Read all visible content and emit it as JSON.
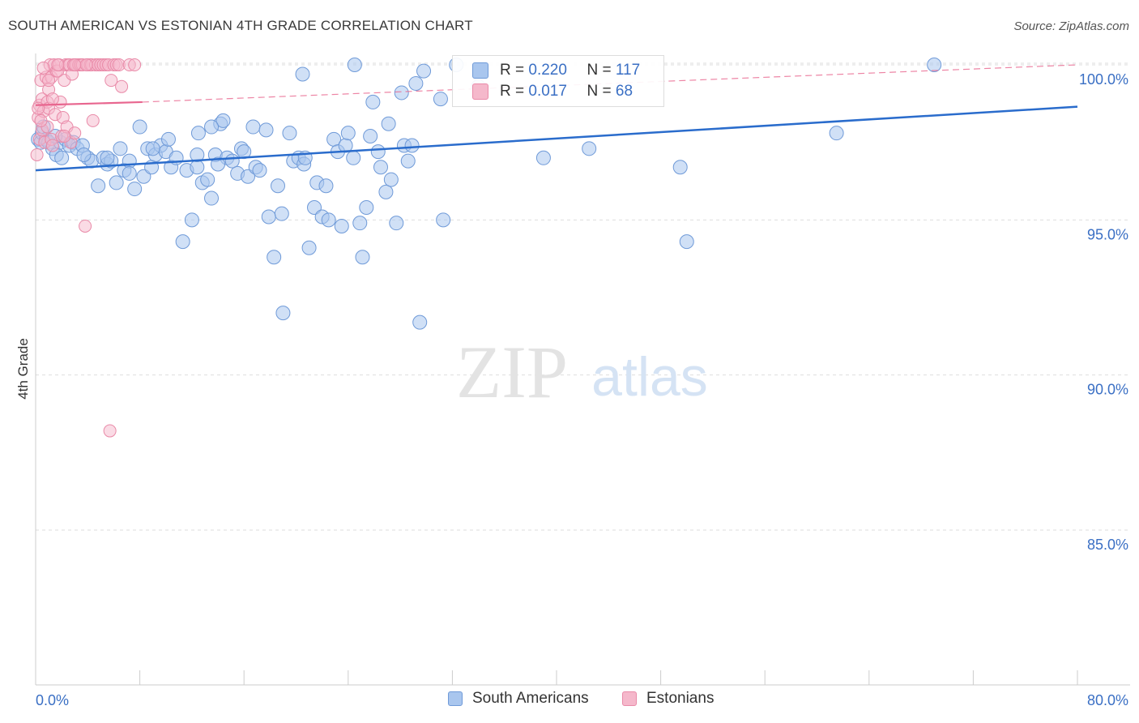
{
  "header": {
    "title": "SOUTH AMERICAN VS ESTONIAN 4TH GRADE CORRELATION CHART",
    "source": "Source: ZipAtlas.com"
  },
  "watermark": {
    "zip": "ZIP",
    "atlas": "atlas"
  },
  "stats": {
    "south": {
      "r_label": "R =",
      "r_value": "0.220",
      "n_label": "N =",
      "n_value": "117"
    },
    "estonian": {
      "r_label": "R =",
      "r_value": "0.017",
      "n_label": "N =",
      "n_value": "68"
    }
  },
  "legend": {
    "south": "South Americans",
    "estonian": "Estonians"
  },
  "colors": {
    "blue_fill": "#a9c6ee",
    "blue_stroke": "#6f9ad8",
    "blue_line": "#2a6ccc",
    "pink_fill": "#f5b8cb",
    "pink_stroke": "#e98aa8",
    "pink_line": "#e8668f",
    "tick_label": "#3a6fc4",
    "grid": "#dddddd"
  },
  "chart_data": {
    "type": "scatter",
    "title": "SOUTH AMERICAN VS ESTONIAN 4TH GRADE CORRELATION CHART",
    "xlabel": "",
    "ylabel": "4th Grade",
    "xlim": [
      0,
      80
    ],
    "ylim": [
      80.5,
      100.8
    ],
    "x_tick_labels": [
      "0.0%",
      "80.0%"
    ],
    "y_ticks": [
      85,
      90,
      95,
      100
    ],
    "y_tick_labels": [
      "85.0%",
      "90.0%",
      "95.0%",
      "100.0%"
    ],
    "grid": true,
    "legend_position": "bottom-center",
    "series": [
      {
        "name": "South Americans",
        "r": 0.22,
        "n": 117,
        "trend": {
          "x": [
            0,
            80
          ],
          "y": [
            96.6,
            98.65
          ]
        },
        "points": [
          [
            0.2,
            97.6
          ],
          [
            0.4,
            97.5
          ],
          [
            0.5,
            97.8
          ],
          [
            0.6,
            98.0
          ],
          [
            0.8,
            97.6
          ],
          [
            1.0,
            97.5
          ],
          [
            1.3,
            97.3
          ],
          [
            1.6,
            97.1
          ],
          [
            1.9,
            97.5
          ],
          [
            2.3,
            97.6
          ],
          [
            2.6,
            97.4
          ],
          [
            2.9,
            97.5
          ],
          [
            3.2,
            97.3
          ],
          [
            3.6,
            97.4
          ],
          [
            4.0,
            97.0
          ],
          [
            4.3,
            96.9
          ],
          [
            4.8,
            96.1
          ],
          [
            5.2,
            97.0
          ],
          [
            5.5,
            96.8
          ],
          [
            5.8,
            96.9
          ],
          [
            6.2,
            96.2
          ],
          [
            6.5,
            97.3
          ],
          [
            6.8,
            96.6
          ],
          [
            7.2,
            96.9
          ],
          [
            7.6,
            96.0
          ],
          [
            8.0,
            98.0
          ],
          [
            8.3,
            96.4
          ],
          [
            8.6,
            97.3
          ],
          [
            8.9,
            96.7
          ],
          [
            9.2,
            97.1
          ],
          [
            9.6,
            97.4
          ],
          [
            10.0,
            97.2
          ],
          [
            10.4,
            96.7
          ],
          [
            10.8,
            97.0
          ],
          [
            11.3,
            94.3
          ],
          [
            11.6,
            96.6
          ],
          [
            12.0,
            95.0
          ],
          [
            12.4,
            96.7
          ],
          [
            12.4,
            97.1
          ],
          [
            12.5,
            97.8
          ],
          [
            12.8,
            96.2
          ],
          [
            13.2,
            96.3
          ],
          [
            13.5,
            95.7
          ],
          [
            13.8,
            97.1
          ],
          [
            14.2,
            98.1
          ],
          [
            14.4,
            98.2
          ],
          [
            14.7,
            97.0
          ],
          [
            15.1,
            96.9
          ],
          [
            15.5,
            96.5
          ],
          [
            15.8,
            97.3
          ],
          [
            16.0,
            97.2
          ],
          [
            16.3,
            96.4
          ],
          [
            16.7,
            98.0
          ],
          [
            16.9,
            96.7
          ],
          [
            17.2,
            96.6
          ],
          [
            17.7,
            97.9
          ],
          [
            17.9,
            95.1
          ],
          [
            18.3,
            93.8
          ],
          [
            18.6,
            96.1
          ],
          [
            18.9,
            95.2
          ],
          [
            19.0,
            92.0
          ],
          [
            19.5,
            97.8
          ],
          [
            19.8,
            96.9
          ],
          [
            20.2,
            97.0
          ],
          [
            20.6,
            96.8
          ],
          [
            20.7,
            97.0
          ],
          [
            21.0,
            94.1
          ],
          [
            21.4,
            95.4
          ],
          [
            21.6,
            96.2
          ],
          [
            22.0,
            95.1
          ],
          [
            22.3,
            96.1
          ],
          [
            22.5,
            95.0
          ],
          [
            22.9,
            97.6
          ],
          [
            23.2,
            97.2
          ],
          [
            23.5,
            94.8
          ],
          [
            23.8,
            97.4
          ],
          [
            24.0,
            97.8
          ],
          [
            24.4,
            97.0
          ],
          [
            24.9,
            94.9
          ],
          [
            25.1,
            93.8
          ],
          [
            25.4,
            95.4
          ],
          [
            25.7,
            97.7
          ],
          [
            25.9,
            98.8
          ],
          [
            26.3,
            97.2
          ],
          [
            26.5,
            96.7
          ],
          [
            26.9,
            95.9
          ],
          [
            27.1,
            98.1
          ],
          [
            27.3,
            96.3
          ],
          [
            27.7,
            94.9
          ],
          [
            28.1,
            99.1
          ],
          [
            28.3,
            97.4
          ],
          [
            28.6,
            96.9
          ],
          [
            28.9,
            97.4
          ],
          [
            29.2,
            99.4
          ],
          [
            29.5,
            91.7
          ],
          [
            29.8,
            99.8
          ],
          [
            31.1,
            98.9
          ],
          [
            31.3,
            95.0
          ],
          [
            32.3,
            100.0
          ],
          [
            34.0,
            99.3
          ],
          [
            39.0,
            97.0
          ],
          [
            42.5,
            97.3
          ],
          [
            49.5,
            96.7
          ],
          [
            50.0,
            94.3
          ],
          [
            61.5,
            97.8
          ],
          [
            69.0,
            100.0
          ],
          [
            24.5,
            100.0
          ],
          [
            20.5,
            99.7
          ],
          [
            9.0,
            97.3
          ],
          [
            13.5,
            98.0
          ],
          [
            5.5,
            97.0
          ],
          [
            3.7,
            97.1
          ],
          [
            7.2,
            96.5
          ],
          [
            1.5,
            97.7
          ],
          [
            2.0,
            97.0
          ],
          [
            10.2,
            97.6
          ],
          [
            14.0,
            96.8
          ]
        ]
      },
      {
        "name": "Estonians",
        "r": 0.017,
        "n": 68,
        "trend_solid": {
          "x": [
            0,
            8.2
          ],
          "y": [
            98.7,
            98.8
          ]
        },
        "trend_dashed": {
          "x": [
            8.2,
            80
          ],
          "y": [
            98.8,
            100.0
          ]
        },
        "points": [
          [
            0.1,
            97.1
          ],
          [
            0.2,
            98.3
          ],
          [
            0.3,
            98.7
          ],
          [
            0.3,
            97.6
          ],
          [
            0.4,
            99.5
          ],
          [
            0.5,
            97.9
          ],
          [
            0.5,
            98.9
          ],
          [
            0.6,
            98.5
          ],
          [
            0.7,
            97.5
          ],
          [
            0.8,
            99.6
          ],
          [
            0.9,
            98.8
          ],
          [
            1.0,
            98.6
          ],
          [
            1.0,
            99.2
          ],
          [
            1.1,
            100.0
          ],
          [
            1.2,
            99.6
          ],
          [
            1.2,
            97.6
          ],
          [
            1.3,
            97.4
          ],
          [
            1.4,
            100.0
          ],
          [
            1.5,
            98.4
          ],
          [
            1.6,
            99.8
          ],
          [
            1.7,
            99.8
          ],
          [
            1.8,
            100.0
          ],
          [
            1.9,
            98.8
          ],
          [
            2.0,
            97.7
          ],
          [
            2.1,
            98.3
          ],
          [
            2.2,
            99.5
          ],
          [
            2.3,
            100.0
          ],
          [
            2.4,
            98.0
          ],
          [
            2.5,
            100.0
          ],
          [
            2.6,
            100.0
          ],
          [
            2.7,
            97.5
          ],
          [
            2.8,
            99.7
          ],
          [
            2.9,
            100.0
          ],
          [
            3.0,
            97.8
          ],
          [
            3.1,
            100.0
          ],
          [
            3.3,
            100.0
          ],
          [
            3.4,
            100.0
          ],
          [
            3.5,
            100.0
          ],
          [
            3.6,
            100.0
          ],
          [
            3.8,
            94.8
          ],
          [
            4.0,
            100.0
          ],
          [
            4.2,
            100.0
          ],
          [
            4.3,
            100.0
          ],
          [
            4.4,
            98.2
          ],
          [
            4.6,
            100.0
          ],
          [
            4.8,
            100.0
          ],
          [
            5.0,
            100.0
          ],
          [
            5.2,
            100.0
          ],
          [
            5.4,
            100.0
          ],
          [
            5.6,
            100.0
          ],
          [
            5.7,
            88.2
          ],
          [
            5.8,
            99.5
          ],
          [
            6.0,
            100.0
          ],
          [
            6.2,
            100.0
          ],
          [
            6.4,
            100.0
          ],
          [
            6.6,
            99.3
          ],
          [
            7.2,
            100.0
          ],
          [
            7.6,
            100.0
          ],
          [
            0.2,
            98.6
          ],
          [
            0.6,
            99.9
          ],
          [
            0.9,
            98.0
          ],
          [
            1.3,
            98.9
          ],
          [
            1.7,
            100.0
          ],
          [
            2.2,
            97.7
          ],
          [
            3.0,
            100.0
          ],
          [
            3.9,
            100.0
          ],
          [
            0.4,
            98.2
          ],
          [
            1.0,
            99.5
          ]
        ]
      }
    ]
  }
}
